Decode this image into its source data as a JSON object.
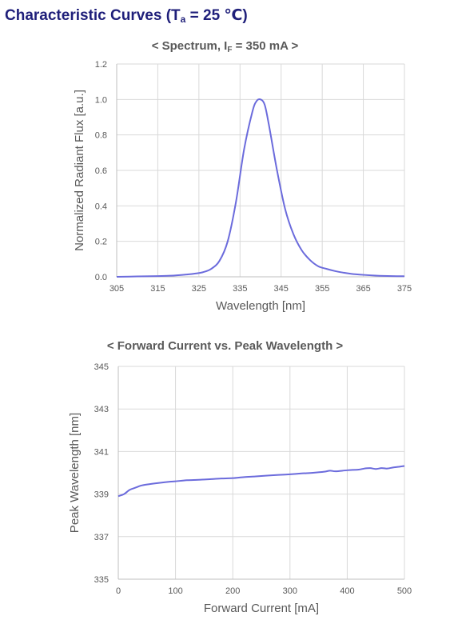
{
  "header": {
    "title_prefix": "Characteristic Curves (T",
    "title_sub": "a",
    "title_suffix": " = 25 ℃)"
  },
  "chart_data": [
    {
      "type": "line",
      "title_prefix": "< Spectrum, I",
      "title_sub": "F",
      "title_suffix": " = 350 mA >",
      "xlabel": "Wavelength [nm]",
      "ylabel": "Normalized Radiant Flux [a.u.]",
      "xlim": [
        305,
        375
      ],
      "ylim": [
        0,
        1.2
      ],
      "xticks": [
        "305",
        "315",
        "325",
        "335",
        "345",
        "355",
        "365",
        "375"
      ],
      "yticks": [
        "0.0",
        "0.2",
        "0.4",
        "0.6",
        "0.8",
        "1.0",
        "1.2"
      ],
      "grid": true,
      "line_color": "#6b6bdc",
      "series": [
        {
          "x": [
            305,
            310,
            315,
            318,
            320,
            322,
            324,
            326,
            328,
            330,
            332,
            334,
            336,
            338,
            339,
            340,
            341,
            342,
            344,
            346,
            348,
            350,
            352,
            354,
            356,
            358,
            360,
            362,
            365,
            368,
            372,
            375
          ],
          "y": [
            0.0,
            0.002,
            0.004,
            0.006,
            0.009,
            0.013,
            0.018,
            0.026,
            0.045,
            0.09,
            0.2,
            0.42,
            0.72,
            0.93,
            0.99,
            1.0,
            0.97,
            0.86,
            0.6,
            0.38,
            0.24,
            0.15,
            0.095,
            0.06,
            0.045,
            0.033,
            0.024,
            0.017,
            0.011,
            0.007,
            0.004,
            0.003
          ]
        }
      ]
    },
    {
      "type": "line",
      "title": "< Forward Current vs. Peak Wavelength >",
      "xlabel": "Forward Current [mA]",
      "ylabel": "Peak Wavelength [nm]",
      "xlim": [
        0,
        500
      ],
      "ylim": [
        335,
        345
      ],
      "xticks": [
        "0",
        "100",
        "200",
        "300",
        "400",
        "500"
      ],
      "yticks": [
        "335",
        "337",
        "339",
        "341",
        "343",
        "345"
      ],
      "grid": true,
      "line_color": "#6b6bdc",
      "series": [
        {
          "x": [
            0,
            10,
            20,
            30,
            40,
            50,
            70,
            90,
            100,
            120,
            140,
            160,
            180,
            200,
            220,
            240,
            260,
            280,
            300,
            320,
            340,
            360,
            370,
            380,
            400,
            420,
            430,
            440,
            450,
            460,
            470,
            480,
            490,
            500
          ],
          "y": [
            338.9,
            339.0,
            339.2,
            339.3,
            339.4,
            339.45,
            339.52,
            339.58,
            339.6,
            339.65,
            339.67,
            339.7,
            339.73,
            339.75,
            339.8,
            339.83,
            339.87,
            339.9,
            339.93,
            339.97,
            340.0,
            340.05,
            340.1,
            340.07,
            340.12,
            340.15,
            340.2,
            340.22,
            340.18,
            340.22,
            340.2,
            340.25,
            340.28,
            340.32
          ]
        }
      ]
    }
  ]
}
